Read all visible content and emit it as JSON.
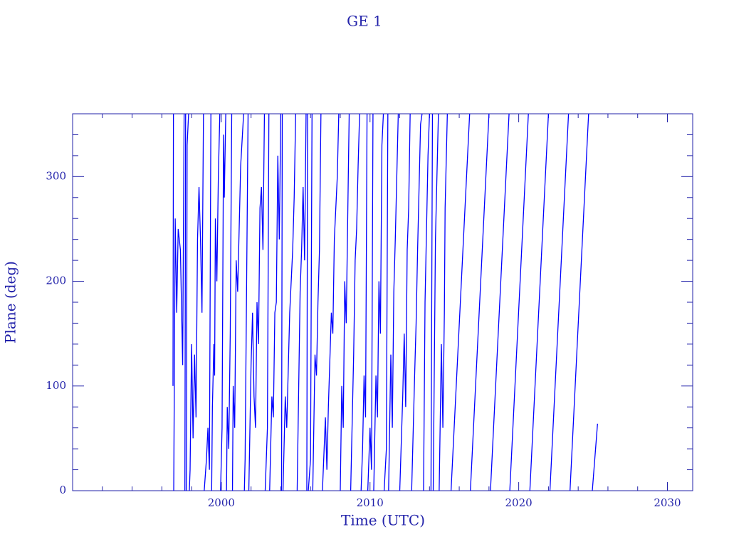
{
  "chart_data": {
    "type": "line",
    "title": "GE 1",
    "xlabel": "Time (UTC)",
    "ylabel": "Plane (deg)",
    "color": "#0000ff",
    "axis_color": "#2222aa",
    "xlim": [
      1990,
      2031.7
    ],
    "ylim": [
      0,
      360
    ],
    "xticks": [
      2000,
      2010,
      2020,
      2030
    ],
    "yticks": [
      0,
      100,
      200,
      300
    ],
    "xminorticks": [
      1992,
      1994,
      1996,
      1998,
      2002,
      2004,
      2006,
      2008,
      2012,
      2014,
      2016,
      2018,
      2022,
      2024,
      2026,
      2028,
      2030
    ],
    "yminorticks": [
      20,
      40,
      60,
      80,
      120,
      140,
      160,
      180,
      220,
      240,
      260,
      280,
      320,
      340
    ],
    "x": [
      1996.75,
      1996.78,
      null,
      1996.8,
      1996.9,
      1997.0,
      1997.1,
      1997.25,
      1997.4,
      1997.5,
      null,
      1997.55,
      1997.6,
      null,
      1997.65,
      1997.7,
      1997.8,
      null,
      1997.85,
      1997.9,
      1998.0,
      1998.1,
      1998.2,
      1998.3,
      1998.4,
      1998.5,
      1998.6,
      1998.7,
      1998.8,
      null,
      1998.85,
      1999.0,
      1999.1,
      1999.2,
      1999.3,
      null,
      1999.35,
      1999.4,
      1999.5,
      1999.55,
      1999.6,
      1999.7,
      1999.8,
      1999.9,
      null,
      1999.95,
      2000.05,
      2000.15,
      2000.2,
      2000.3,
      null,
      2000.35,
      2000.4,
      2000.5,
      2000.6,
      2000.7,
      null,
      2000.75,
      2000.8,
      2000.9,
      2001.0,
      2001.1,
      2001.3,
      2001.5,
      null,
      2001.55,
      2001.6,
      2001.8,
      null,
      2001.85,
      2002.0,
      2002.1,
      2002.2,
      2002.3,
      2002.4,
      2002.5,
      2002.6,
      2002.7,
      2002.8,
      2002.9,
      null,
      2002.95,
      2003.1,
      2003.2,
      null,
      2003.25,
      2003.4,
      2003.5,
      2003.6,
      2003.7,
      2003.8,
      2003.9,
      2004.0,
      null,
      2004.05,
      2004.1,
      null,
      2004.15,
      2004.3,
      2004.4,
      2004.6,
      2004.8,
      2004.9,
      2005.0,
      null,
      2005.1,
      2005.3,
      2005.4,
      2005.5,
      2005.6,
      2005.7,
      null,
      2005.75,
      2005.8,
      null,
      2005.85,
      2006.0,
      2006.1,
      null,
      2006.15,
      2006.3,
      2006.4,
      2006.5,
      2006.6,
      2006.7,
      null,
      2006.8,
      2007.0,
      2007.1,
      2007.2,
      2007.4,
      2007.5,
      2007.6,
      2007.8,
      2007.9,
      null,
      2008.0,
      2008.1,
      2008.2,
      2008.3,
      2008.4,
      2008.6,
      null,
      2008.7,
      2008.9,
      2009.0,
      2009.1,
      2009.2,
      2009.3,
      null,
      2009.4,
      2009.5,
      2009.6,
      2009.7,
      2009.8,
      null,
      2009.85,
      2010.0,
      2010.1,
      2010.2,
      null,
      2010.25,
      2010.4,
      2010.5,
      2010.6,
      2010.7,
      2010.8,
      2010.9,
      null,
      2010.95,
      2011.1,
      2011.2,
      null,
      2011.25,
      2011.4,
      2011.5,
      2011.6,
      2011.7,
      2011.8,
      2011.9,
      null,
      2012.0,
      2012.2,
      2012.3,
      2012.4,
      2012.5,
      2012.6,
      2012.7,
      null,
      2012.8,
      2013.0,
      2013.1,
      2013.2,
      2013.3,
      2013.4,
      2013.5,
      null,
      2013.6,
      2013.7,
      2013.8,
      2013.9,
      2014.0,
      null,
      2014.1,
      2014.2,
      null,
      2014.25,
      2014.4,
      2014.5,
      2014.6,
      null,
      2014.65,
      2014.8,
      2014.9,
      2015.0,
      2015.05,
      2015.2,
      null,
      2015.45,
      2016.7,
      null,
      2016.75,
      2018.0,
      null,
      2018.1,
      2019.35,
      null,
      2019.4,
      2020.65,
      null,
      2020.75,
      2022.0,
      null,
      2022.1,
      2023.35,
      null,
      2023.45,
      2024.7,
      null,
      2024.95,
      2025.3
    ],
    "values": [
      100,
      360,
      null,
      0,
      260,
      170,
      250,
      230,
      120,
      360,
      null,
      0,
      360,
      null,
      0,
      330,
      360,
      null,
      0,
      20,
      140,
      50,
      130,
      70,
      240,
      290,
      240,
      170,
      360,
      null,
      0,
      30,
      60,
      20,
      360,
      null,
      0,
      80,
      140,
      110,
      260,
      200,
      300,
      360,
      null,
      0,
      60,
      340,
      280,
      360,
      null,
      0,
      80,
      40,
      150,
      360,
      null,
      0,
      100,
      60,
      220,
      190,
      310,
      360,
      null,
      0,
      30,
      360,
      null,
      0,
      120,
      170,
      90,
      60,
      180,
      140,
      270,
      290,
      230,
      360,
      null,
      0,
      60,
      360,
      null,
      0,
      90,
      70,
      170,
      180,
      320,
      240,
      360,
      null,
      0,
      360,
      null,
      0,
      90,
      60,
      170,
      230,
      280,
      360,
      null,
      0,
      190,
      230,
      290,
      220,
      360,
      null,
      0,
      360,
      null,
      0,
      30,
      360,
      null,
      0,
      130,
      110,
      180,
      230,
      360,
      null,
      0,
      70,
      20,
      80,
      170,
      150,
      240,
      300,
      360,
      null,
      0,
      100,
      60,
      200,
      160,
      360,
      null,
      0,
      130,
      220,
      250,
      310,
      360,
      null,
      0,
      40,
      110,
      70,
      360,
      null,
      0,
      60,
      20,
      360,
      null,
      0,
      110,
      70,
      200,
      150,
      330,
      360,
      null,
      0,
      40,
      360,
      null,
      0,
      130,
      60,
      190,
      240,
      300,
      360,
      null,
      0,
      90,
      150,
      80,
      230,
      270,
      360,
      null,
      0,
      110,
      160,
      230,
      290,
      350,
      360,
      null,
      0,
      180,
      250,
      320,
      360,
      null,
      0,
      360,
      null,
      0,
      240,
      300,
      360,
      null,
      0,
      140,
      60,
      170,
      270,
      360,
      null,
      0,
      360,
      null,
      0,
      360,
      null,
      0,
      360,
      null,
      0,
      360,
      null,
      0,
      360,
      null,
      0,
      360,
      null,
      0,
      360,
      null,
      0,
      64
    ]
  }
}
